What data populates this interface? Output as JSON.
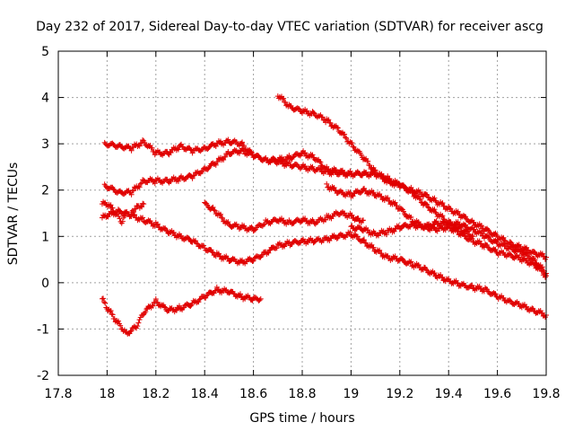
{
  "chart_data": {
    "type": "scatter",
    "title": "Day 232 of 2017, Sidereal Day-to-day VTEC variation (SDTVAR) for receiver ascg",
    "xlabel": "GPS time / hours",
    "ylabel": "SDTVAR / TECUs",
    "xlim": [
      17.8,
      19.8
    ],
    "ylim": [
      -2,
      5
    ],
    "xticks": [
      "17.8",
      "18",
      "18.2",
      "18.4",
      "18.6",
      "18.8",
      "19",
      "19.2",
      "19.4",
      "19.6",
      "19.8"
    ],
    "yticks": [
      "-2",
      "-1",
      "0",
      "1",
      "2",
      "3",
      "4",
      "5"
    ],
    "grid": true,
    "marker": "+",
    "color": "#e00000",
    "series": [
      {
        "name": "s1",
        "x": [
          17.99,
          18.05,
          18.1,
          18.15,
          18.2,
          18.25,
          18.3,
          18.35,
          18.4,
          18.45,
          18.5,
          18.55,
          18.6,
          18.65,
          18.7,
          18.75,
          18.8,
          18.85,
          18.9,
          18.95,
          19.0,
          19.05,
          19.1,
          19.15,
          19.2,
          19.25,
          19.3,
          19.35,
          19.4,
          19.45,
          19.5,
          19.55,
          19.6,
          19.65,
          19.7,
          19.75,
          19.8
        ],
        "y": [
          3.0,
          2.95,
          2.9,
          3.05,
          2.8,
          2.8,
          2.95,
          2.85,
          2.9,
          3.0,
          3.05,
          3.0,
          2.75,
          2.65,
          2.65,
          2.7,
          2.8,
          2.7,
          2.45,
          2.4,
          2.35,
          2.35,
          2.35,
          2.2,
          2.1,
          2.0,
          1.9,
          1.75,
          1.6,
          1.45,
          1.3,
          1.15,
          1.0,
          0.85,
          0.75,
          0.65,
          0.55
        ]
      },
      {
        "name": "s2",
        "x": [
          17.99,
          18.05,
          18.1,
          18.15,
          18.2,
          18.25,
          18.3,
          18.35,
          18.4,
          18.45,
          18.5,
          18.55,
          18.6,
          18.65,
          18.7,
          18.75,
          18.8,
          18.85,
          18.9,
          18.95,
          19.0,
          19.05,
          19.1,
          19.15,
          19.2,
          19.25,
          19.3,
          19.35,
          19.4,
          19.45,
          19.5,
          19.55,
          19.6,
          19.65,
          19.7,
          19.75,
          19.8
        ],
        "y": [
          2.1,
          1.95,
          1.95,
          2.2,
          2.2,
          2.2,
          2.25,
          2.3,
          2.45,
          2.6,
          2.8,
          2.85,
          2.75,
          2.65,
          2.6,
          2.55,
          2.5,
          2.45,
          2.4,
          2.35,
          2.35,
          2.35,
          2.35,
          2.25,
          2.1,
          1.95,
          1.7,
          1.5,
          1.3,
          1.25,
          1.15,
          1.0,
          0.85,
          0.75,
          0.65,
          0.5,
          0.2
        ]
      },
      {
        "name": "s3",
        "x": [
          17.98,
          18.0,
          18.05,
          18.1,
          18.15,
          18.2,
          18.25,
          18.3,
          18.35,
          18.4,
          18.45,
          18.5,
          18.55,
          18.6,
          18.65,
          18.7,
          18.75,
          18.8,
          18.85,
          18.9,
          18.95,
          19.0,
          19.05,
          19.1,
          19.15,
          19.2,
          19.25,
          19.3,
          19.35,
          19.4,
          19.45,
          19.5,
          19.55,
          19.6,
          19.65,
          19.7,
          19.75,
          19.8
        ],
        "y": [
          1.4,
          1.45,
          1.55,
          1.45,
          1.35,
          1.25,
          1.1,
          1.0,
          0.9,
          0.75,
          0.6,
          0.5,
          0.45,
          0.5,
          0.65,
          0.8,
          0.85,
          0.9,
          0.9,
          0.95,
          1.0,
          1.05,
          0.9,
          0.7,
          0.55,
          0.5,
          0.4,
          0.3,
          0.15,
          0.05,
          -0.05,
          -0.1,
          -0.15,
          -0.3,
          -0.4,
          -0.5,
          -0.6,
          -0.7
        ]
      },
      {
        "name": "s4",
        "x": [
          17.98,
          18.0,
          18.05,
          18.08,
          18.12,
          18.15,
          18.2,
          18.25,
          18.3,
          18.35,
          18.4,
          18.45,
          18.5,
          18.55,
          18.6,
          18.63
        ],
        "y": [
          -0.35,
          -0.55,
          -0.9,
          -1.1,
          -0.95,
          -0.65,
          -0.4,
          -0.6,
          -0.55,
          -0.45,
          -0.3,
          -0.15,
          -0.2,
          -0.3,
          -0.35,
          -0.35
        ]
      },
      {
        "name": "s5",
        "x": [
          17.98,
          18.0,
          18.03,
          18.06,
          18.08
        ],
        "y": [
          1.7,
          1.7,
          1.55,
          1.3,
          1.5
        ]
      },
      {
        "name": "s6",
        "x": [
          18.1,
          18.13,
          18.15
        ],
        "y": [
          1.55,
          1.65,
          1.7
        ]
      },
      {
        "name": "s7",
        "x": [
          18.4,
          18.43,
          18.45,
          18.5,
          18.55,
          18.6,
          18.65,
          18.7,
          18.75,
          18.8,
          18.85,
          18.9,
          18.95,
          19.0,
          19.03,
          19.05
        ],
        "y": [
          1.7,
          1.6,
          1.5,
          1.25,
          1.2,
          1.15,
          1.3,
          1.35,
          1.3,
          1.35,
          1.3,
          1.4,
          1.5,
          1.45,
          1.35,
          1.35
        ]
      },
      {
        "name": "s8",
        "x": [
          18.7,
          18.75,
          18.8,
          18.85,
          18.9,
          18.95,
          19.0,
          19.05,
          19.1,
          19.15,
          19.2
        ],
        "y": [
          4.05,
          3.8,
          3.7,
          3.65,
          3.5,
          3.3,
          3.0,
          2.7,
          2.4,
          2.2,
          2.1
        ]
      },
      {
        "name": "s9",
        "x": [
          18.9,
          18.95,
          19.0,
          19.05,
          19.1,
          19.15,
          19.2,
          19.25,
          19.3,
          19.35,
          19.4,
          19.45,
          19.5,
          19.55,
          19.6,
          19.65,
          19.7,
          19.75,
          19.8
        ],
        "y": [
          2.1,
          1.95,
          1.9,
          2.0,
          1.9,
          1.8,
          1.6,
          1.35,
          1.2,
          1.15,
          1.2,
          1.05,
          0.9,
          0.8,
          0.65,
          0.6,
          0.5,
          0.4,
          0.15
        ]
      },
      {
        "name": "s10",
        "x": [
          19.0,
          19.05,
          19.1,
          19.15,
          19.2,
          19.25,
          19.3,
          19.35,
          19.4,
          19.45,
          19.5
        ],
        "y": [
          1.2,
          1.15,
          1.05,
          1.1,
          1.2,
          1.25,
          1.2,
          1.3,
          1.25,
          1.15,
          1.0
        ]
      }
    ]
  }
}
